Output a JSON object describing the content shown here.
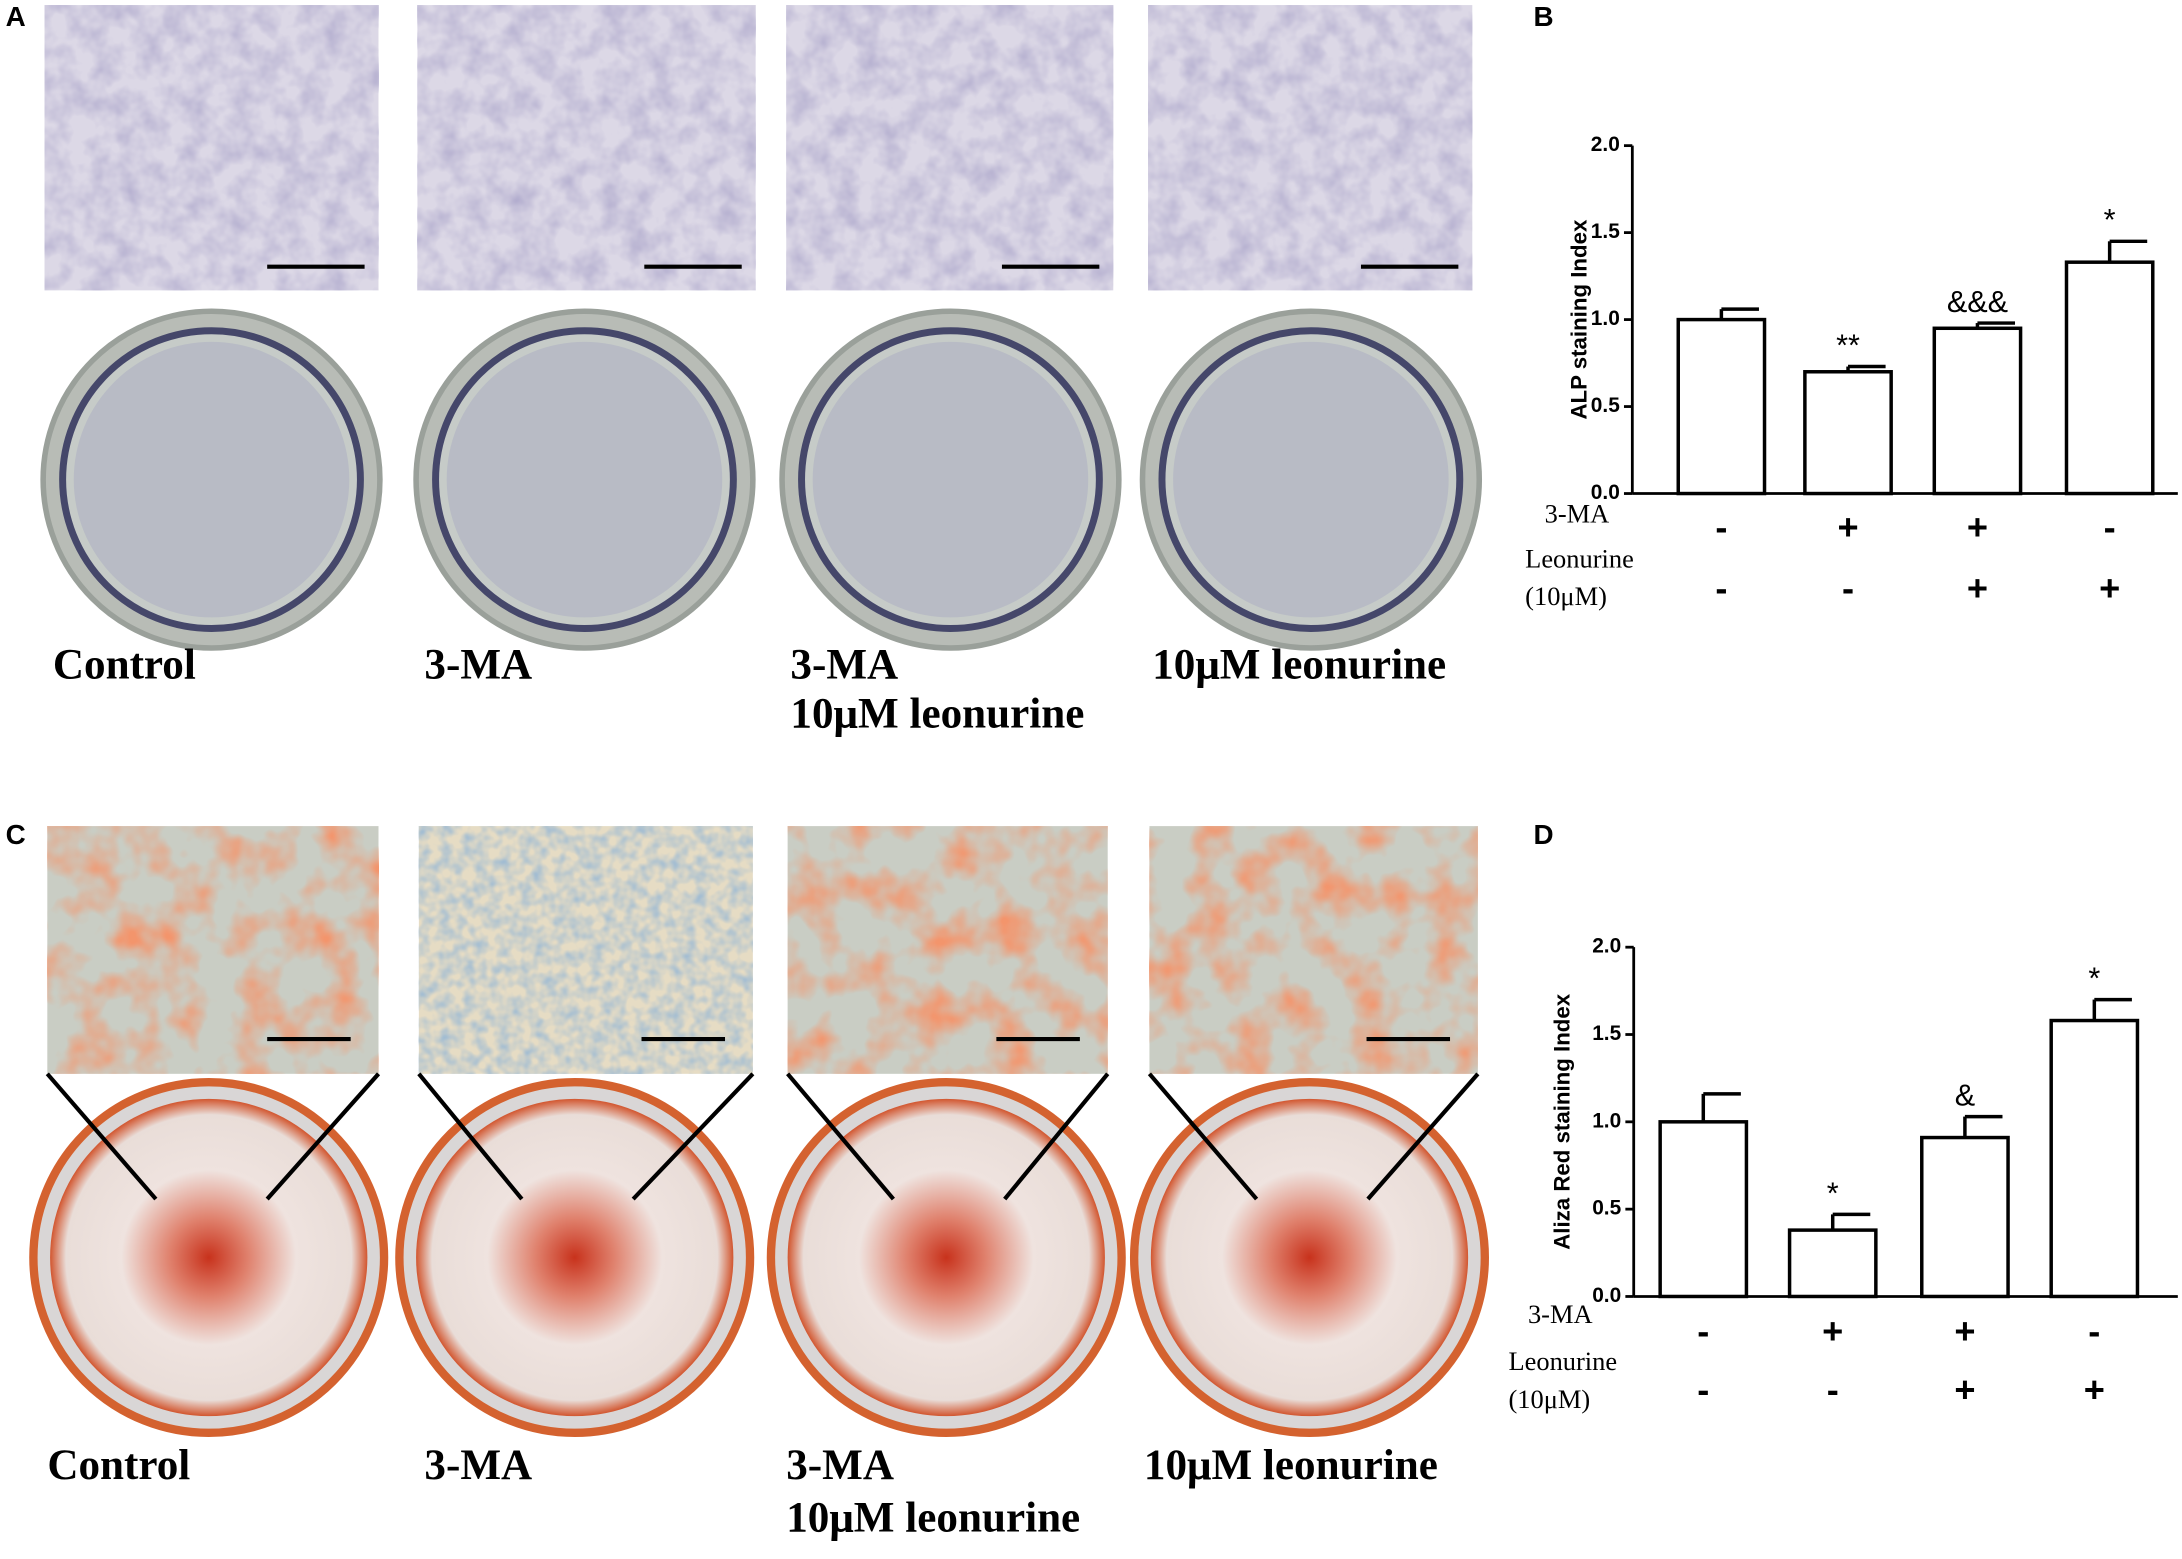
{
  "panel_letters": [
    "A",
    "B",
    "C",
    "D"
  ],
  "conditions": {
    "A": [
      [
        "Control"
      ],
      [
        "3-MA"
      ],
      [
        "3-MA",
        "10μM leonurine"
      ],
      [
        "10μM leonurine"
      ]
    ],
    "C": [
      [
        "Control"
      ],
      [
        "3-MA"
      ],
      [
        "3-MA",
        "10μM leonurine"
      ],
      [
        "10μM leonurine"
      ]
    ]
  },
  "chart_data": [
    {
      "type": "bar",
      "y_label": "ALP staining Index",
      "categories": [
        null,
        null,
        null,
        null
      ],
      "values": [
        1.0,
        0.7,
        0.95,
        1.33
      ],
      "errors": [
        0.06,
        0.03,
        0.03,
        0.12
      ],
      "annotations": [
        null,
        "**",
        "&&&",
        "*"
      ],
      "color": "#ffffff",
      "edgecolor": "#000000",
      "ylim": [
        0,
        2
      ],
      "yticks": [
        {
          "value": 0,
          "label": "0.0"
        },
        0.5,
        {
          "value": 1,
          "label": "1.0"
        },
        1.5,
        {
          "value": 2,
          "label": "2.0"
        }
      ],
      "treatments": [
        {
          "label": [
            "3-MA"
          ],
          "signs": [
            "-",
            "+",
            "+",
            "-"
          ]
        },
        {
          "label": [
            "Leonurine",
            "(10μM)"
          ],
          "signs": [
            "-",
            "-",
            "+",
            "+"
          ]
        }
      ]
    },
    {
      "type": "bar",
      "y_label": "Aliza Red staining Index",
      "categories": [
        null,
        null,
        null,
        null
      ],
      "values": [
        1.0,
        0.38,
        0.91,
        1.58
      ],
      "errors": [
        0.16,
        0.09,
        0.12,
        0.12
      ],
      "annotations": [
        null,
        "*",
        "&",
        "*"
      ],
      "color": "#ffffff",
      "edgecolor": "#000000",
      "ylim": [
        0,
        2
      ],
      "yticks": [
        {
          "value": 0,
          "label": "0.0"
        },
        0.5,
        {
          "value": 1,
          "label": "1.0"
        },
        1.5,
        {
          "value": 2,
          "label": "2.0"
        }
      ],
      "treatments": [
        {
          "label": [
            "3-MA"
          ],
          "signs": [
            "-",
            "+",
            "+",
            "-"
          ]
        },
        {
          "label": [
            "Leonurine",
            "(10μM)"
          ],
          "signs": [
            "-",
            "-",
            "+",
            "+"
          ]
        }
      ]
    }
  ]
}
